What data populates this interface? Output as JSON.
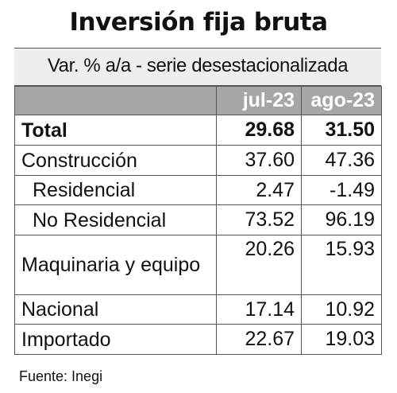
{
  "chart_data": {
    "type": "table",
    "title": "Inversión fija bruta",
    "subtitle": "Var. % a/a - serie desestacionalizada",
    "columns": [
      "jul-23",
      "ago-23"
    ],
    "rows": [
      {
        "label": "Total",
        "values": [
          "29.68",
          "31.50"
        ]
      },
      {
        "label": "Construcción",
        "values": [
          "37.60",
          "47.36"
        ]
      },
      {
        "label": "Residencial",
        "values": [
          "2.47",
          "-1.49"
        ]
      },
      {
        "label": "No Residencial",
        "values": [
          "73.52",
          "96.19"
        ]
      },
      {
        "label": "Maquinaria y equipo",
        "values": [
          "20.26",
          "15.93"
        ]
      },
      {
        "label": "Nacional",
        "values": [
          "17.14",
          "10.92"
        ]
      },
      {
        "label": "Importado",
        "values": [
          "22.67",
          "19.03"
        ]
      }
    ],
    "source": "Fuente: Inegi"
  },
  "colors": {
    "header_bg": "#a6a6a6",
    "subtitle_bg": "#eeeeee",
    "border": "#555555"
  }
}
